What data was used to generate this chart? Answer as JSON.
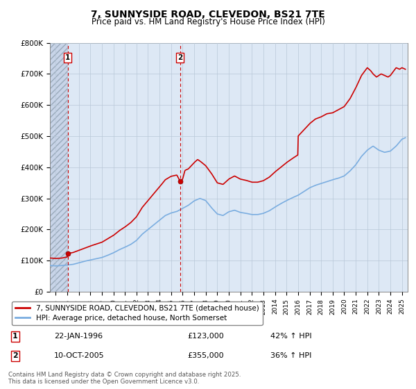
{
  "title": "7, SUNNYSIDE ROAD, CLEVEDON, BS21 7TE",
  "subtitle": "Price paid vs. HM Land Registry's House Price Index (HPI)",
  "legend_entry1": "7, SUNNYSIDE ROAD, CLEVEDON, BS21 7TE (detached house)",
  "legend_entry2": "HPI: Average price, detached house, North Somerset",
  "transaction1_label": "1",
  "transaction1_date": "22-JAN-1996",
  "transaction1_price": "£123,000",
  "transaction1_hpi": "42% ↑ HPI",
  "transaction2_label": "2",
  "transaction2_date": "10-OCT-2005",
  "transaction2_price": "£355,000",
  "transaction2_hpi": "36% ↑ HPI",
  "footnote": "Contains HM Land Registry data © Crown copyright and database right 2025.\nThis data is licensed under the Open Government Licence v3.0.",
  "house_color": "#cc0000",
  "hpi_color": "#7aade0",
  "vline_color": "#cc0000",
  "bg_color": "#ffffff",
  "plot_bg_color": "#dde8f5",
  "hatch_bg_color": "#c8d4e8",
  "grid_color": "#b8c8d8",
  "ylim": [
    0,
    800000
  ],
  "xlim_start": 1994.5,
  "xlim_end": 2025.5,
  "transaction1_x": 1996.055,
  "transaction2_x": 2005.78,
  "transaction1_y": 123000,
  "transaction2_y": 355000
}
